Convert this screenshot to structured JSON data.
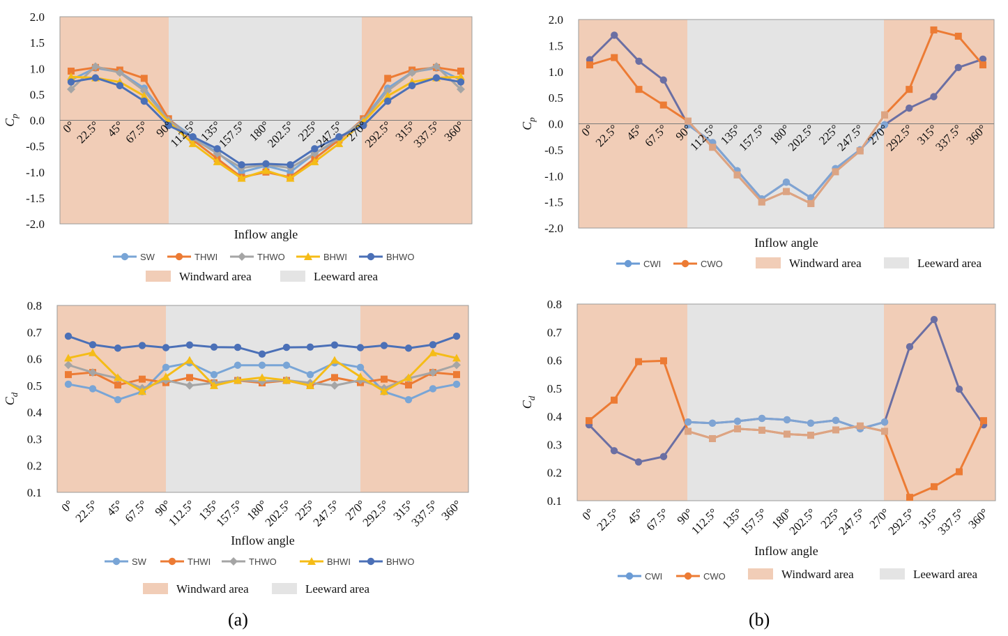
{
  "colors": {
    "windward": "#f1cdb7",
    "leeward": "#e4e4e4",
    "SW": "#79a5d6",
    "THWI": "#ec7b34",
    "THWO": "#a5a5a5",
    "BHWI": "#f5bc17",
    "BHWO": "#4b70b7",
    "CWI_top": "#6b6fa3",
    "CWO_top": "#ec7b34",
    "CWI_bot": "#6b6fa3",
    "CWO_bot": "#ec7b34",
    "CWI_leeward": "#7fa4d3",
    "CWO_leeward": "#dca483",
    "CWI_legend": "#6a9bd5",
    "CWO_legend": "#ec7b34"
  },
  "panel_labels": {
    "a": "(a)",
    "b": "(b)"
  },
  "chart_data": [
    {
      "id": "a-top",
      "type": "line",
      "ylabel": "Cp",
      "ylabel_main": "C",
      "ylabel_sub": "p",
      "xlabel": "Inflow angle",
      "ylim": [
        -2.0,
        2.0
      ],
      "yticks": [
        "2.0",
        "1.5",
        "1.0",
        "0.5",
        "0.0",
        "-0.5",
        "-1.0",
        "-1.5",
        "-2.0"
      ],
      "categories": [
        "0°",
        "22.5°",
        "45°",
        "67.5°",
        "90°",
        "112.5°",
        "135°",
        "157.5°",
        "180°",
        "202.5°",
        "225°",
        "247.5°",
        "270°",
        "292.5°",
        "315°",
        "337.5°",
        "360°"
      ],
      "series": [
        {
          "name": "SW",
          "color_key": "SW",
          "marker": "circle",
          "values": [
            0.78,
            1.01,
            0.93,
            0.62,
            0.02,
            -0.32,
            -0.62,
            -1.0,
            -0.88,
            -1.0,
            -0.64,
            -0.38,
            0.02,
            0.62,
            0.93,
            1.01,
            0.78
          ]
        },
        {
          "name": "THWI",
          "color_key": "THWI",
          "marker": "square",
          "values": [
            0.95,
            1.02,
            0.97,
            0.81,
            0.03,
            -0.38,
            -0.74,
            -1.1,
            -1.0,
            -1.1,
            -0.74,
            -0.38,
            0.03,
            0.81,
            0.97,
            1.02,
            0.95
          ]
        },
        {
          "name": "THWO",
          "color_key": "THWO",
          "marker": "diamond",
          "values": [
            0.6,
            1.04,
            0.92,
            0.57,
            0.0,
            -0.35,
            -0.64,
            -0.92,
            -0.86,
            -0.92,
            -0.64,
            -0.35,
            0.0,
            0.57,
            0.92,
            1.04,
            0.6
          ]
        },
        {
          "name": "BHWI",
          "color_key": "BHWI",
          "marker": "triangle",
          "values": [
            0.84,
            0.82,
            0.74,
            0.47,
            -0.03,
            -0.45,
            -0.8,
            -1.12,
            -0.97,
            -1.12,
            -0.8,
            -0.45,
            -0.03,
            0.47,
            0.74,
            0.82,
            0.84
          ]
        },
        {
          "name": "BHWO",
          "color_key": "BHWO",
          "marker": "circle",
          "values": [
            0.74,
            0.82,
            0.67,
            0.37,
            -0.1,
            -0.32,
            -0.55,
            -0.86,
            -0.84,
            -0.86,
            -0.55,
            -0.32,
            -0.1,
            0.37,
            0.67,
            0.82,
            0.74
          ]
        }
      ],
      "legend": [
        "SW",
        "THWI",
        "THWO",
        "BHWI",
        "BHWO"
      ],
      "area_legend": [
        "Windward area",
        "Leeward area"
      ]
    },
    {
      "id": "b-top",
      "type": "line",
      "ylabel": "Cp",
      "ylabel_main": "C",
      "ylabel_sub": "p",
      "xlabel": "Inflow angle",
      "ylim": [
        -2.0,
        2.0
      ],
      "yticks": [
        "2.0",
        "1.5",
        "1.0",
        "0.5",
        "0.0",
        "-0.5",
        "-1.0",
        "-1.5",
        "-2.0"
      ],
      "categories": [
        "0°",
        "22.5°",
        "45°",
        "67.5°",
        "90°",
        "112.5°",
        "135°",
        "157.5°",
        "180°",
        "202.5°",
        "225°",
        "247.5°",
        "270°",
        "292.5°",
        "315°",
        "337.5°",
        "360°"
      ],
      "series": [
        {
          "name": "CWI",
          "color_key": "CWI_top",
          "marker": "circle",
          "values": [
            1.23,
            1.7,
            1.2,
            0.84,
            -0.02,
            -0.36,
            -0.9,
            -1.44,
            -1.12,
            -1.42,
            -0.86,
            -0.5,
            -0.02,
            0.3,
            0.52,
            1.08,
            1.24
          ]
        },
        {
          "name": "CWO",
          "color_key": "CWO_top",
          "marker": "square",
          "values": [
            1.13,
            1.27,
            0.66,
            0.36,
            0.05,
            -0.45,
            -0.98,
            -1.5,
            -1.3,
            -1.53,
            -0.92,
            -0.52,
            0.17,
            0.66,
            1.8,
            1.68,
            1.13
          ]
        }
      ],
      "legend": [
        "CWI",
        "CWO"
      ],
      "area_legend": [
        "Windward area",
        "Leeward area"
      ]
    },
    {
      "id": "a-bottom",
      "type": "line",
      "ylabel": "Cd",
      "ylabel_main": "C",
      "ylabel_sub": "d",
      "xlabel": "Inflow angle",
      "ylim": [
        0.1,
        0.8
      ],
      "yticks": [
        "0.8",
        "0.7",
        "0.6",
        "0.5",
        "0.4",
        "0.3",
        "0.2",
        "0.1"
      ],
      "categories": [
        "0°",
        "22.5°",
        "45°",
        "67.5°",
        "90°",
        "112.5°",
        "135°",
        "157.5°",
        "180°",
        "202.5°",
        "225°",
        "247.5°",
        "270°",
        "292.5°",
        "315°",
        "337.5°",
        "360°"
      ],
      "series": [
        {
          "name": "SW",
          "color_key": "SW",
          "marker": "circle",
          "values": [
            0.505,
            0.488,
            0.447,
            0.477,
            0.568,
            0.585,
            0.541,
            0.576,
            0.576,
            0.576,
            0.541,
            0.585,
            0.568,
            0.477,
            0.447,
            0.488,
            0.505
          ]
        },
        {
          "name": "THWI",
          "color_key": "THWI",
          "marker": "square",
          "values": [
            0.541,
            0.549,
            0.502,
            0.524,
            0.511,
            0.53,
            0.51,
            0.519,
            0.51,
            0.519,
            0.5,
            0.53,
            0.511,
            0.524,
            0.502,
            0.549,
            0.541
          ]
        },
        {
          "name": "THWO",
          "color_key": "THWO",
          "marker": "diamond",
          "values": [
            0.577,
            0.549,
            0.527,
            0.49,
            0.52,
            0.5,
            0.51,
            0.52,
            0.515,
            0.52,
            0.51,
            0.5,
            0.52,
            0.49,
            0.527,
            0.549,
            0.577
          ]
        },
        {
          "name": "BHWI",
          "color_key": "BHWI",
          "marker": "triangle",
          "values": [
            0.603,
            0.623,
            0.53,
            0.478,
            0.533,
            0.595,
            0.5,
            0.52,
            0.53,
            0.52,
            0.5,
            0.595,
            0.533,
            0.478,
            0.53,
            0.623,
            0.603
          ]
        },
        {
          "name": "BHWO",
          "color_key": "BHWO",
          "marker": "circle",
          "values": [
            0.685,
            0.653,
            0.64,
            0.65,
            0.642,
            0.652,
            0.644,
            0.643,
            0.618,
            0.643,
            0.644,
            0.652,
            0.642,
            0.65,
            0.64,
            0.653,
            0.685
          ]
        }
      ],
      "legend": [
        "SW",
        "THWI",
        "THWO",
        "BHWI",
        "BHWO"
      ],
      "area_legend": [
        "Windward area",
        "Leeward area"
      ]
    },
    {
      "id": "b-bottom",
      "type": "line",
      "ylabel": "Cd",
      "ylabel_main": "C",
      "ylabel_sub": "d",
      "xlabel": "Inflow angle",
      "ylim": [
        0.1,
        0.8
      ],
      "yticks": [
        "0.8",
        "0.7",
        "0.6",
        "0.5",
        "0.4",
        "0.3",
        "0.2",
        "0.1"
      ],
      "categories": [
        "0°",
        "22.5°",
        "45°",
        "67.5°",
        "90°",
        "112.5°",
        "135°",
        "157.5°",
        "180°",
        "202.5°",
        "225°",
        "247.5°",
        "270°",
        "292.5°",
        "315°",
        "337.5°",
        "360°"
      ],
      "series": [
        {
          "name": "CWI",
          "color_key": "CWI_bot",
          "marker": "circle",
          "values": [
            0.37,
            0.278,
            0.238,
            0.257,
            0.38,
            0.376,
            0.383,
            0.393,
            0.388,
            0.376,
            0.386,
            0.356,
            0.38,
            0.648,
            0.745,
            0.497,
            0.37
          ]
        },
        {
          "name": "CWO",
          "color_key": "CWO_bot",
          "marker": "square",
          "values": [
            0.385,
            0.458,
            0.595,
            0.598,
            0.347,
            0.321,
            0.356,
            0.351,
            0.337,
            0.333,
            0.352,
            0.366,
            0.347,
            0.112,
            0.15,
            0.203,
            0.385
          ]
        }
      ],
      "legend": [
        "CWI",
        "CWO"
      ],
      "area_legend": [
        "Windward area",
        "Leeward area"
      ]
    }
  ]
}
